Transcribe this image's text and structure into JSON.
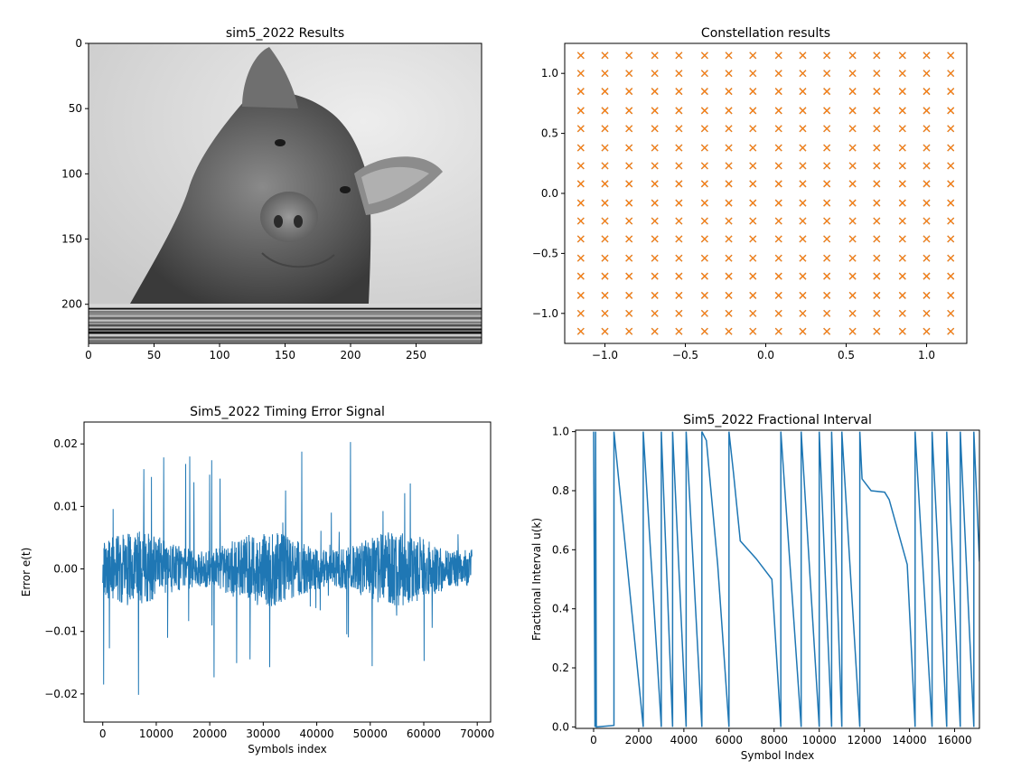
{
  "chart_data": [
    {
      "type": "image",
      "title": "sim5_2022 Results",
      "xlim": [
        0,
        300
      ],
      "ylim": [
        230,
        0
      ],
      "xticks": [
        "0",
        "50",
        "100",
        "150",
        "200",
        "250"
      ],
      "xtick_values": [
        0,
        50,
        100,
        150,
        200,
        250
      ],
      "yticks": [
        "0",
        "50",
        "100",
        "150",
        "200"
      ],
      "ytick_values": [
        0,
        50,
        100,
        150,
        200
      ],
      "content": "grayscale pig photograph with striped noise band at bottom rows 200-230",
      "stripe_start_row": 200
    },
    {
      "type": "scatter",
      "title": "Constellation results",
      "xlim": [
        -1.25,
        1.25
      ],
      "ylim": [
        -1.25,
        1.25
      ],
      "xticks": [
        "−1.0",
        "−0.5",
        "0.0",
        "0.5",
        "1.0"
      ],
      "xtick_values": [
        -1.0,
        -0.5,
        0.0,
        0.5,
        1.0
      ],
      "yticks": [
        "1.0",
        "0.5",
        "0.0",
        "−0.5",
        "−1.0"
      ],
      "ytick_values": [
        1.0,
        0.5,
        0.0,
        -0.5,
        -1.0
      ],
      "grid_levels": [
        -1.15,
        -1.0,
        -0.85,
        -0.69,
        -0.54,
        -0.38,
        -0.23,
        -0.08,
        0.08,
        0.23,
        0.38,
        0.54,
        0.69,
        0.85,
        1.0,
        1.15
      ],
      "marker": "x",
      "series": [
        {
          "color": "#1f77b4",
          "marker": "x"
        },
        {
          "color": "#ff7f0e",
          "marker": "x"
        }
      ]
    },
    {
      "type": "line",
      "title": "Sim5_2022 Timing Error Signal",
      "xlabel": "Symbols index",
      "ylabel": "Error e(t)",
      "xlim": [
        -3500,
        72500
      ],
      "ylim": [
        -0.0245,
        0.0235
      ],
      "xticks": [
        "0",
        "10000",
        "20000",
        "30000",
        "40000",
        "50000",
        "60000",
        "70000"
      ],
      "xtick_values": [
        0,
        10000,
        20000,
        30000,
        40000,
        50000,
        60000,
        70000
      ],
      "yticks": [
        "0.02",
        "0.01",
        "0.00",
        "−0.01",
        "−0.02"
      ],
      "ytick_values": [
        0.02,
        0.01,
        0.0,
        -0.01,
        -0.02
      ],
      "x_range": [
        0,
        69000
      ],
      "y_min": -0.0228,
      "y_max": 0.0215,
      "color": "#1f77b4"
    },
    {
      "type": "line",
      "title": "Sim5_2022 Fractional Interval",
      "xlabel": "Symbol Index",
      "ylabel": "Fractional Interval u(k)",
      "xlim": [
        -800,
        17100
      ],
      "ylim": [
        -0.005,
        1.005
      ],
      "xticks": [
        "0",
        "2000",
        "4000",
        "6000",
        "8000",
        "10000",
        "12000",
        "14000",
        "16000"
      ],
      "xtick_values": [
        0,
        2000,
        4000,
        6000,
        8000,
        10000,
        12000,
        14000,
        16000
      ],
      "yticks": [
        "1.0",
        "0.8",
        "0.6",
        "0.4",
        "0.2",
        "0.0"
      ],
      "ytick_values": [
        1.0,
        0.8,
        0.6,
        0.4,
        0.2,
        0.0
      ],
      "color": "#1f77b4",
      "x": [
        0,
        60,
        90,
        120,
        900,
        900,
        2200,
        2200,
        3000,
        3000,
        3500,
        3500,
        4100,
        4100,
        4800,
        4800,
        5000,
        5500,
        6000,
        6000,
        6200,
        6500,
        7200,
        7900,
        8300,
        8300,
        9200,
        9200,
        10000,
        10000,
        10550,
        10550,
        11000,
        11000,
        11800,
        11800,
        11900,
        12300,
        12900,
        13100,
        13900,
        14250,
        14250,
        15000,
        15000,
        15650,
        15650,
        16250,
        16250,
        16850,
        16850,
        17100
      ],
      "y": [
        1.0,
        0.0,
        1.0,
        0.0,
        0.005,
        1.0,
        0.0,
        1.0,
        0.0,
        1.0,
        0.0,
        1.0,
        0.0,
        1.0,
        0.0,
        1.0,
        0.97,
        0.55,
        0.0,
        1.0,
        0.86,
        0.63,
        0.57,
        0.5,
        0.0,
        1.0,
        0.0,
        1.0,
        0.0,
        1.0,
        0.0,
        1.0,
        0.0,
        1.0,
        0.0,
        1.0,
        0.84,
        0.8,
        0.795,
        0.77,
        0.55,
        0.0,
        1.0,
        0.0,
        1.0,
        0.0,
        1.0,
        0.0,
        1.0,
        0.0,
        1.0,
        0.56
      ]
    }
  ]
}
